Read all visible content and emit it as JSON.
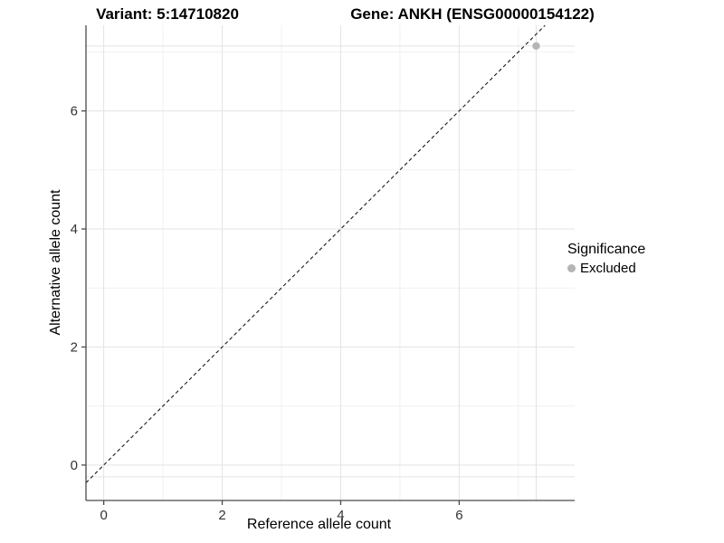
{
  "titles": {
    "left": "Variant: 5:14710820",
    "right": "Gene: ANKH (ENSG00000154122)"
  },
  "legend": {
    "title": "Significance",
    "items": [
      {
        "label": "Excluded",
        "color": "#b5b5b5"
      }
    ]
  },
  "colors": {
    "grid_major": "#e3e3e3",
    "grid_minor": "#f1f1f1",
    "crosshair": "#e3e3e3",
    "axis": "#4a4a4a",
    "tick_label": "#333333",
    "identity_line": "#1a1a1a"
  },
  "chart_data": {
    "type": "scatter",
    "title": "Variant: 5:14710820 | Gene: ANKH (ENSG00000154122)",
    "xlabel": "Reference allele count",
    "ylabel": "Alternative allele count",
    "xlim": [
      -0.3,
      7.95
    ],
    "ylim": [
      -0.6,
      7.45
    ],
    "x_ticks": [
      0,
      2,
      4,
      6
    ],
    "y_ticks": [
      0,
      2,
      4,
      6
    ],
    "x_minor_ticks": [
      1,
      3,
      5,
      7
    ],
    "y_minor_ticks": [
      1,
      3,
      5,
      7
    ],
    "grid": true,
    "legend_position": "right",
    "reference_line": {
      "type": "identity",
      "intercept": 0,
      "slope": 1,
      "style": "dashed"
    },
    "series": [
      {
        "name": "Excluded",
        "color": "#b5b5b5",
        "points": [
          {
            "x": 7.3,
            "y": 7.1
          }
        ]
      }
    ],
    "crosshair_lines": {
      "vertical_at_x": 7.3,
      "horizontal_at_y": [
        7.1,
        -0.2
      ]
    }
  }
}
